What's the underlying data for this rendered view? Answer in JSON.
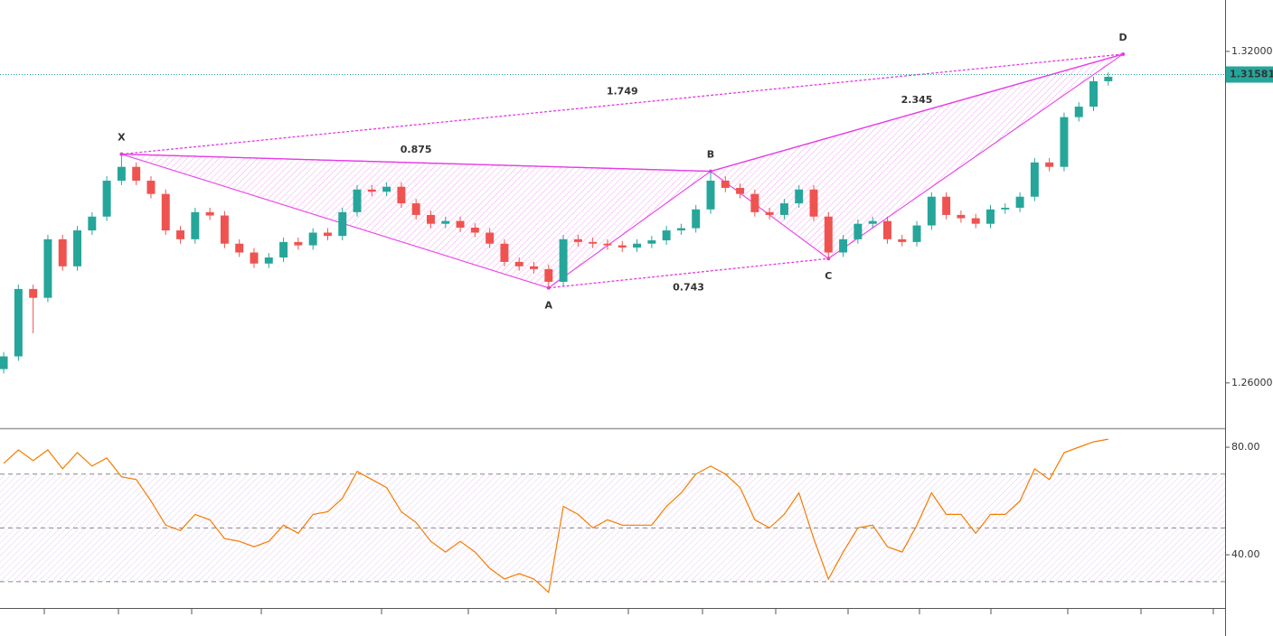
{
  "chart_data": [
    {
      "type": "candlestick",
      "open": [
        1.2625,
        1.2648,
        1.277,
        1.2754,
        1.286,
        1.2811,
        1.2876,
        1.2901,
        1.2966,
        1.2991,
        1.2966,
        1.2942,
        1.2876,
        1.286,
        1.2909,
        1.2903,
        1.2852,
        1.2836,
        1.2816,
        1.2827,
        1.2855,
        1.2849,
        1.2872,
        1.2866,
        1.2909,
        1.295,
        1.2946,
        1.2955,
        1.2925,
        1.2904,
        1.2888,
        1.2893,
        1.2881,
        1.2872,
        1.2852,
        1.2819,
        1.2811,
        1.2806,
        1.2783,
        1.286,
        1.2855,
        1.2852,
        1.2849,
        1.2845,
        1.2852,
        1.2858,
        1.2876,
        1.288,
        1.2914,
        1.2966,
        1.2953,
        1.2942,
        1.2909,
        1.2904,
        1.2925,
        1.295,
        1.2901,
        1.2836,
        1.286,
        1.2888,
        1.2893,
        1.286,
        1.2855,
        1.2885,
        1.2937,
        1.2904,
        1.2898,
        1.2888,
        1.2914,
        1.2917,
        1.2937,
        1.2999,
        1.2991,
        1.3081,
        1.31,
        1.3146
      ],
      "high": [
        1.2656,
        1.2778,
        1.2778,
        1.2868,
        1.2868,
        1.2884,
        1.2909,
        1.2974,
        1.3014,
        1.2999,
        1.2974,
        1.295,
        1.2884,
        1.2917,
        1.2917,
        1.2911,
        1.286,
        1.2844,
        1.2835,
        1.2863,
        1.2863,
        1.288,
        1.288,
        1.2917,
        1.2958,
        1.2958,
        1.2963,
        1.2963,
        1.2933,
        1.2912,
        1.2901,
        1.2901,
        1.2889,
        1.288,
        1.286,
        1.2827,
        1.2819,
        1.2814,
        1.2868,
        1.2868,
        1.2863,
        1.286,
        1.2857,
        1.286,
        1.2866,
        1.2884,
        1.2888,
        1.2922,
        1.2983,
        1.2974,
        1.2961,
        1.295,
        1.2917,
        1.2933,
        1.2958,
        1.2958,
        1.2909,
        1.2868,
        1.2896,
        1.2901,
        1.2901,
        1.2868,
        1.2893,
        1.2945,
        1.2945,
        1.2912,
        1.2906,
        1.2922,
        1.2925,
        1.2945,
        1.3007,
        1.3007,
        1.3089,
        1.3108,
        1.3154,
        1.3162
      ],
      "low": [
        1.2617,
        1.264,
        1.269,
        1.2746,
        1.2803,
        1.2803,
        1.2868,
        1.2893,
        1.2958,
        1.2958,
        1.2934,
        1.2868,
        1.2852,
        1.2852,
        1.2895,
        1.2844,
        1.2828,
        1.2808,
        1.2808,
        1.2819,
        1.2841,
        1.2841,
        1.2858,
        1.2858,
        1.2901,
        1.2938,
        1.2938,
        1.2917,
        1.2896,
        1.288,
        1.288,
        1.2873,
        1.2864,
        1.2844,
        1.2811,
        1.2803,
        1.2798,
        1.2772,
        1.2775,
        1.2847,
        1.2844,
        1.2841,
        1.2837,
        1.2837,
        1.2844,
        1.285,
        1.2868,
        1.2872,
        1.2906,
        1.2945,
        1.2934,
        1.2901,
        1.2896,
        1.2896,
        1.2917,
        1.2893,
        1.2825,
        1.2828,
        1.2852,
        1.288,
        1.2852,
        1.2847,
        1.2847,
        1.2877,
        1.2896,
        1.289,
        1.288,
        1.288,
        1.2906,
        1.2909,
        1.2929,
        1.2983,
        1.2983,
        1.3073,
        1.3092,
        1.3138
      ],
      "close": [
        1.2648,
        1.277,
        1.2754,
        1.286,
        1.2811,
        1.2876,
        1.2901,
        1.2966,
        1.2991,
        1.2966,
        1.2942,
        1.2876,
        1.286,
        1.2909,
        1.2903,
        1.2852,
        1.2836,
        1.2816,
        1.2827,
        1.2855,
        1.2849,
        1.2872,
        1.2866,
        1.2909,
        1.295,
        1.2946,
        1.2955,
        1.2925,
        1.2904,
        1.2888,
        1.2893,
        1.2881,
        1.2872,
        1.2852,
        1.2819,
        1.2811,
        1.2806,
        1.2783,
        1.286,
        1.2855,
        1.2852,
        1.2849,
        1.2845,
        1.2852,
        1.2858,
        1.2876,
        1.288,
        1.2914,
        1.2966,
        1.2953,
        1.2942,
        1.2909,
        1.2904,
        1.2925,
        1.295,
        1.2901,
        1.2836,
        1.286,
        1.2888,
        1.2893,
        1.286,
        1.2855,
        1.2885,
        1.2937,
        1.2904,
        1.2898,
        1.2888,
        1.2914,
        1.2917,
        1.2937,
        1.2999,
        1.2991,
        1.3081,
        1.31,
        1.3146,
        1.3154
      ],
      "up_color": "#26a69a",
      "down_color": "#ef5350",
      "xlim": [
        -0.25,
        82.93
      ],
      "ylim": [
        1.2518,
        1.3293
      ],
      "yticks": [
        {
          "value": 1.32,
          "label": "1.32000"
        },
        {
          "value": 1.26,
          "label": "1.26000"
        }
      ],
      "last_price": 1.31581,
      "pattern": {
        "color": "#e53be5",
        "points": [
          {
            "label": "X",
            "x": 8,
            "y": 1.3014
          },
          {
            "label": "A",
            "x": 37,
            "y": 1.2772
          },
          {
            "label": "B",
            "x": 48,
            "y": 1.2983
          },
          {
            "label": "C",
            "x": 56,
            "y": 1.2825
          },
          {
            "label": "D",
            "x": 76,
            "y": 1.3195
          }
        ],
        "ratios": [
          "0.875",
          "0.743",
          "1.749",
          "2.345"
        ]
      }
    },
    {
      "type": "line",
      "color": "#f57c00",
      "values": [
        74,
        79,
        75,
        79,
        72,
        78,
        73,
        76,
        69,
        68,
        60,
        51,
        49,
        55,
        53,
        46,
        45,
        43,
        45,
        51,
        48,
        55,
        56,
        61,
        71,
        68,
        65,
        56,
        52,
        45,
        41,
        45,
        41,
        35,
        31,
        33,
        31,
        26,
        58,
        55,
        50,
        53,
        51,
        51,
        51,
        58,
        63,
        70,
        73,
        70,
        65,
        53,
        50,
        55,
        63,
        46,
        31,
        41,
        50,
        51,
        43,
        41,
        51,
        63,
        55,
        55,
        48,
        55,
        55,
        60,
        72,
        68,
        78,
        80,
        82,
        83
      ],
      "xlim": [
        -0.25,
        82.93
      ],
      "ylim": [
        20.2,
        86.4
      ],
      "yticks": [
        {
          "value": 80,
          "label": "80.00"
        },
        {
          "value": 40,
          "label": "40.00"
        }
      ],
      "levels": [
        70,
        50,
        30
      ],
      "band_color": "#b36be0"
    }
  ]
}
